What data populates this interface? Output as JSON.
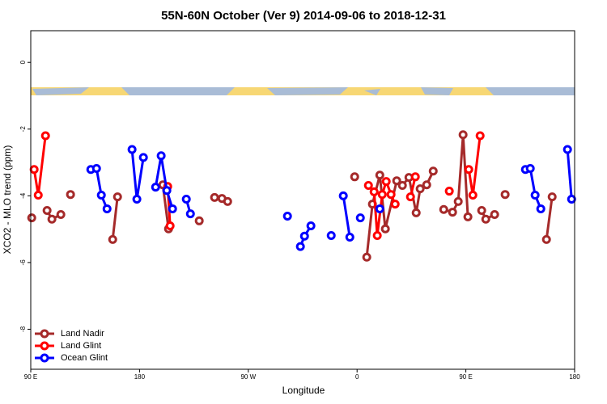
{
  "chart_data": {
    "type": "line",
    "title": "55N-60N October (Ver 9)   2014-09-06 to 2018-12-31",
    "x_label": "Longitude",
    "y_label": "XCO2 - MLO trend (ppm)",
    "xlim": [
      -270,
      180
    ],
    "xticks": [
      {
        "value": -270,
        "label": "90 E"
      },
      {
        "value": -180,
        "label": "180"
      },
      {
        "value": -90,
        "label": "90 W"
      },
      0,
      {
        "value": 90,
        "label": "90 E"
      },
      {
        "value": 180,
        "label": "180"
      }
    ],
    "ylim": [
      -9.2,
      0.95
    ],
    "yticks": [
      0,
      -2,
      -4,
      -6,
      -8
    ],
    "legend": "bottom-left",
    "series": [
      {
        "name": "Land Nadir",
        "color": "#a52a2a",
        "x": [
          -269.2,
          null,
          -256.5,
          -252.5,
          -245.1,
          null,
          -237.1,
          null,
          -202.2,
          -198.2,
          null,
          -160.7,
          -156.0,
          null,
          -130.6,
          null,
          -117.9,
          -111.8,
          -107.1,
          null,
          -2.0,
          null,
          8.0,
          12.7,
          18.8,
          23.4,
          32.8,
          37.5,
          42.9,
          48.9,
          52.2,
          57.6,
          63.0,
          null,
          71.7,
          79.0,
          83.7,
          87.7,
          91.7,
          null,
          103.1,
          106.5,
          113.8,
          null,
          122.5,
          null,
          156.7,
          161.4
        ],
        "values": [
          -4.66,
          null,
          -4.44,
          -4.7,
          -4.56,
          null,
          -3.96,
          null,
          -5.31,
          -4.03,
          null,
          -3.67,
          -4.99,
          null,
          -4.75,
          null,
          -4.05,
          -4.08,
          -4.17,
          null,
          -3.43,
          null,
          -5.84,
          -4.25,
          -3.38,
          -4.99,
          -3.55,
          -3.69,
          -3.45,
          -4.51,
          -3.79,
          -3.67,
          -3.26,
          null,
          -4.41,
          -4.49,
          -4.17,
          -2.17,
          -4.63,
          null,
          -4.44,
          -4.7,
          -4.56,
          null,
          -3.96,
          null,
          -5.31,
          -4.03
        ]
      },
      {
        "name": "Land Glint",
        "color": "#ff0000",
        "x": [
          -267.2,
          -263.8,
          -257.8,
          null,
          -156.7,
          -154.7,
          null,
          9.4,
          14.1,
          16.7,
          20.8,
          24.1,
          28.1,
          31.5,
          null,
          44.2,
          48.2,
          null,
          76.3,
          null,
          92.4,
          95.8,
          101.8
        ],
        "values": [
          -3.21,
          -3.98,
          -2.2,
          null,
          -3.72,
          -4.9,
          null,
          -3.69,
          -3.88,
          -5.19,
          -3.96,
          -3.57,
          -3.96,
          -4.25,
          null,
          -4.03,
          -3.43,
          null,
          -3.86,
          null,
          -3.21,
          -3.98,
          -2.2
        ]
      },
      {
        "name": "Ocean Glint",
        "color": "#0000ff",
        "x": [
          -220.3,
          -215.6,
          -211.6,
          -206.9,
          null,
          -186.2,
          -182.2,
          -176.8,
          null,
          -166.7,
          -162.1,
          -157.4,
          -152.7,
          null,
          -141.3,
          -137.9,
          null,
          -57.6,
          null,
          -46.9,
          -43.5,
          -38.2,
          null,
          -21.4,
          null,
          -11.4,
          -6.0,
          null,
          2.7,
          null,
          18.8,
          null,
          139.3,
          143.3,
          147.3,
          152.0,
          null,
          174.1,
          177.5
        ],
        "values": [
          -3.21,
          -3.18,
          -3.98,
          -4.39,
          null,
          -2.61,
          -4.1,
          -2.85,
          null,
          -3.74,
          -2.8,
          -3.84,
          -4.39,
          null,
          -4.1,
          -4.54,
          null,
          -4.61,
          null,
          -5.52,
          -5.21,
          -4.9,
          null,
          -5.19,
          null,
          -4.0,
          -5.24,
          null,
          -4.66,
          null,
          -4.39,
          null,
          -3.21,
          -3.18,
          -3.98,
          -4.39,
          null,
          -2.61,
          -4.1
        ]
      }
    ]
  }
}
